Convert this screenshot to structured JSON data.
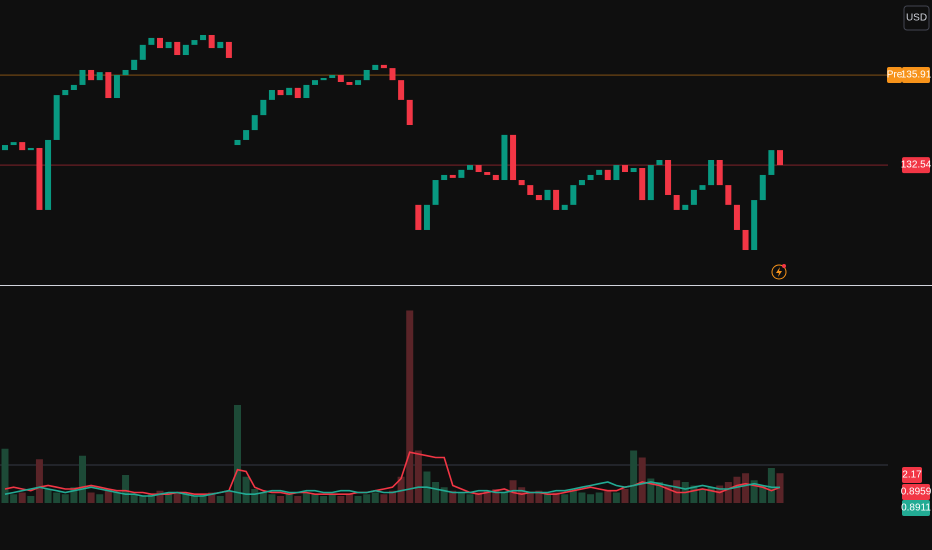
{
  "currency": "USD",
  "chart_data": [
    {
      "type": "candlestick",
      "open": [
        133.1,
        133.29,
        133.4,
        133.1,
        133.18,
        130.86,
        133.48,
        135.16,
        135.35,
        135.54,
        136.1,
        135.72,
        136.02,
        135.05,
        135.91,
        136.1,
        136.48,
        137.04,
        137.3,
        136.92,
        137.15,
        136.66,
        137.04,
        137.22,
        137.41,
        136.92,
        137.15,
        133.29,
        133.48,
        133.85,
        134.41,
        134.98,
        135.35,
        135.16,
        135.43,
        135.05,
        135.54,
        135.72,
        135.8,
        135.91,
        135.65,
        135.54,
        135.72,
        136.1,
        136.29,
        136.17,
        135.72,
        134.98,
        131.05,
        130.11,
        131.05,
        131.98,
        132.17,
        132.06,
        132.36,
        132.54,
        132.28,
        132.17,
        131.98,
        133.67,
        131.98,
        131.79,
        131.42,
        131.23,
        131.61,
        130.86,
        131.05,
        131.79,
        131.98,
        132.17,
        132.36,
        131.98,
        132.54,
        132.28,
        132.43,
        131.23,
        132.54,
        132.73,
        131.42,
        130.86,
        131.05,
        131.61,
        131.79,
        132.73,
        131.79,
        131.05,
        130.11,
        129.36,
        131.23,
        132.17,
        133.1
      ],
      "close": [
        133.29,
        133.4,
        133.1,
        133.18,
        130.86,
        133.48,
        135.16,
        135.35,
        135.54,
        136.1,
        135.72,
        136.02,
        135.05,
        135.91,
        136.1,
        136.48,
        137.04,
        137.3,
        136.92,
        137.15,
        136.66,
        137.04,
        137.22,
        137.41,
        136.92,
        137.15,
        136.55,
        133.48,
        133.85,
        134.41,
        134.98,
        135.35,
        135.16,
        135.43,
        135.05,
        135.54,
        135.72,
        135.8,
        135.91,
        135.65,
        135.54,
        135.72,
        136.1,
        136.29,
        136.17,
        135.72,
        134.98,
        134.04,
        130.11,
        131.05,
        131.98,
        132.17,
        132.06,
        132.36,
        132.54,
        132.28,
        132.17,
        131.98,
        133.67,
        131.98,
        131.79,
        131.42,
        131.23,
        131.61,
        130.86,
        131.05,
        131.79,
        131.98,
        132.17,
        132.36,
        131.98,
        132.54,
        132.28,
        132.43,
        131.23,
        132.54,
        132.73,
        131.42,
        130.86,
        131.05,
        131.61,
        131.79,
        132.73,
        131.79,
        131.05,
        130.11,
        129.36,
        131.23,
        132.17,
        133.1,
        132.54
      ],
      "up_color": "#089981",
      "down_color": "#f23645",
      "ylim": [
        128.05,
        138.72
      ],
      "price_lines": [
        {
          "label": "Pre",
          "value": 135.91,
          "color": "#f7931a"
        },
        {
          "value": 132.54,
          "color": "#f23645"
        }
      ]
    },
    {
      "type": "volume",
      "values": [
        3.1,
        0.5,
        0.6,
        0.4,
        2.5,
        0.8,
        0.6,
        0.5,
        0.9,
        2.7,
        0.6,
        0.5,
        0.8,
        0.6,
        1.6,
        0.5,
        0.4,
        0.5,
        0.7,
        0.5,
        0.6,
        0.5,
        0.4,
        0.5,
        0.6,
        0.4,
        0.7,
        5.6,
        1.5,
        0.8,
        0.6,
        0.5,
        0.4,
        0.5,
        0.4,
        0.6,
        0.5,
        0.4,
        0.5,
        0.4,
        0.5,
        0.4,
        0.5,
        0.6,
        0.5,
        0.7,
        1.5,
        11.0,
        3.0,
        1.8,
        1.2,
        0.9,
        0.7,
        0.6,
        0.5,
        0.6,
        0.7,
        0.8,
        0.6,
        1.3,
        0.9,
        0.6,
        0.7,
        0.5,
        0.6,
        0.5,
        0.7,
        0.6,
        0.5,
        0.6,
        0.7,
        0.6,
        0.8,
        3.0,
        2.6,
        1.4,
        1.2,
        1.0,
        1.3,
        1.2,
        1.0,
        0.8,
        0.9,
        1.0,
        1.2,
        1.5,
        1.7,
        1.3,
        1.0,
        2.0,
        1.7
      ],
      "up_color": "#1d4a37",
      "down_color": "#5a2428",
      "series": [
        {
          "color": "#f23645",
          "values": [
            0.8,
            0.9,
            0.8,
            0.7,
            0.9,
            1.0,
            0.9,
            0.8,
            0.8,
            0.9,
            1.0,
            0.9,
            0.8,
            0.7,
            0.7,
            0.6,
            0.6,
            0.5,
            0.5,
            0.5,
            0.6,
            0.6,
            0.5,
            0.5,
            0.5,
            0.6,
            0.7,
            1.9,
            1.8,
            0.9,
            0.7,
            0.6,
            0.6,
            0.5,
            0.6,
            0.6,
            0.5,
            0.5,
            0.5,
            0.5,
            0.5,
            0.6,
            0.6,
            0.7,
            0.8,
            0.9,
            1.4,
            2.9,
            2.8,
            2.7,
            2.6,
            2.6,
            1.0,
            0.8,
            0.6,
            0.5,
            0.6,
            0.7,
            0.8,
            0.6,
            0.5,
            0.6,
            0.6,
            0.5,
            0.5,
            0.6,
            0.7,
            0.8,
            0.9,
            0.8,
            0.7,
            0.7,
            0.9,
            1.0,
            1.2,
            1.1,
            1.0,
            0.8,
            0.6,
            0.6,
            0.7,
            0.8,
            0.7,
            0.6,
            0.8,
            1.0,
            1.1,
            1.0,
            0.9,
            0.7,
            0.8959
          ]
        },
        {
          "color": "#22ab94",
          "values": [
            0.5,
            0.6,
            0.7,
            0.8,
            0.9,
            0.8,
            0.7,
            0.6,
            0.7,
            0.8,
            0.9,
            0.8,
            0.7,
            0.6,
            0.5,
            0.5,
            0.4,
            0.4,
            0.5,
            0.6,
            0.6,
            0.5,
            0.4,
            0.4,
            0.5,
            0.6,
            0.7,
            0.6,
            0.5,
            0.5,
            0.6,
            0.7,
            0.7,
            0.6,
            0.6,
            0.7,
            0.7,
            0.6,
            0.6,
            0.7,
            0.7,
            0.6,
            0.6,
            0.7,
            0.6,
            0.6,
            0.7,
            0.8,
            0.9,
            0.9,
            0.8,
            0.7,
            0.6,
            0.6,
            0.6,
            0.7,
            0.7,
            0.6,
            0.6,
            0.7,
            0.7,
            0.6,
            0.6,
            0.6,
            0.7,
            0.7,
            0.8,
            0.9,
            1.0,
            1.1,
            1.2,
            1.0,
            0.9,
            1.0,
            1.1,
            1.2,
            1.1,
            1.0,
            0.9,
            0.8,
            0.9,
            1.0,
            0.9,
            0.8,
            0.8,
            0.9,
            1.0,
            1.1,
            1.0,
            0.9,
            0.8911
          ]
        }
      ],
      "levels": [
        {
          "value": 2.17,
          "color": "#f23645"
        }
      ],
      "ylim": [
        0,
        12.17
      ]
    }
  ]
}
